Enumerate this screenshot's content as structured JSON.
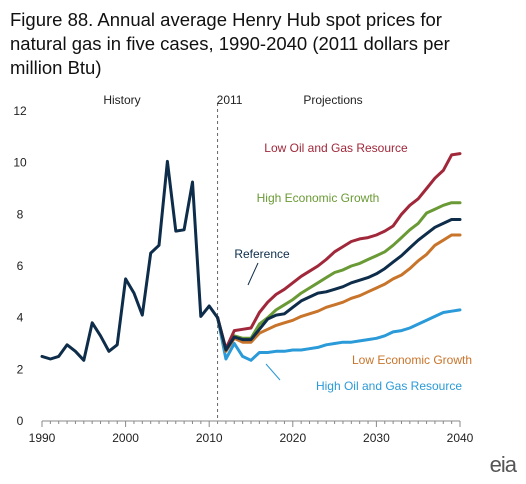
{
  "title": "Figure 88. Annual average Henry Hub spot prices for natural gas in five cases, 1990-2040 (2011 dollars per million Btu)",
  "logo": "eia",
  "chart_data": {
    "type": "line",
    "xlim": [
      1990,
      2040
    ],
    "ylim": [
      0,
      12
    ],
    "xticks": [
      1990,
      2000,
      2010,
      2020,
      2030,
      2040
    ],
    "yticks": [
      0,
      2,
      4,
      6,
      8,
      10,
      12
    ],
    "grid": false,
    "annotations": {
      "history": "History",
      "year_2011": "2011",
      "projections": "Projections"
    },
    "history": {
      "color": "#0e2d4a",
      "x": [
        1990,
        1991,
        1992,
        1993,
        1994,
        1995,
        1996,
        1997,
        1998,
        1999,
        2000,
        2001,
        2002,
        2003,
        2004,
        2005,
        2006,
        2007,
        2008,
        2009,
        2010,
        2011
      ],
      "y": [
        2.5,
        2.4,
        2.5,
        2.95,
        2.7,
        2.35,
        3.8,
        3.3,
        2.7,
        2.95,
        5.5,
        4.95,
        4.1,
        6.5,
        6.8,
        10.05,
        7.35,
        7.4,
        9.25,
        4.05,
        4.45,
        4.0
      ]
    },
    "series": [
      {
        "name": "Low Oil and Gas Resource",
        "color": "#a0283a",
        "x": [
          2011,
          2012,
          2013,
          2014,
          2015,
          2016,
          2017,
          2018,
          2019,
          2020,
          2021,
          2022,
          2023,
          2024,
          2025,
          2026,
          2027,
          2028,
          2029,
          2030,
          2031,
          2032,
          2033,
          2034,
          2035,
          2036,
          2037,
          2038,
          2039,
          2040
        ],
        "y": [
          4.0,
          2.8,
          3.5,
          3.55,
          3.6,
          4.2,
          4.6,
          4.9,
          5.1,
          5.35,
          5.6,
          5.8,
          6.0,
          6.25,
          6.55,
          6.75,
          6.95,
          7.05,
          7.1,
          7.2,
          7.35,
          7.55,
          8.0,
          8.35,
          8.6,
          9.0,
          9.4,
          9.7,
          10.3,
          10.35
        ]
      },
      {
        "name": "High Economic Growth",
        "color": "#6a9a35",
        "x": [
          2011,
          2012,
          2013,
          2014,
          2015,
          2016,
          2017,
          2018,
          2019,
          2020,
          2021,
          2022,
          2023,
          2024,
          2025,
          2026,
          2027,
          2028,
          2029,
          2030,
          2031,
          2032,
          2033,
          2034,
          2035,
          2036,
          2037,
          2038,
          2039,
          2040
        ],
        "y": [
          4.0,
          2.75,
          3.3,
          3.2,
          3.2,
          3.75,
          4.0,
          4.3,
          4.5,
          4.7,
          4.95,
          5.15,
          5.35,
          5.55,
          5.75,
          5.85,
          6.0,
          6.1,
          6.25,
          6.4,
          6.55,
          6.8,
          7.1,
          7.4,
          7.65,
          8.05,
          8.2,
          8.35,
          8.45,
          8.45
        ]
      },
      {
        "name": "Reference",
        "color": "#0e2d4a",
        "x": [
          2011,
          2012,
          2013,
          2014,
          2015,
          2016,
          2017,
          2018,
          2019,
          2020,
          2021,
          2022,
          2023,
          2024,
          2025,
          2026,
          2027,
          2028,
          2029,
          2030,
          2031,
          2032,
          2033,
          2034,
          2035,
          2036,
          2037,
          2038,
          2039,
          2040
        ],
        "y": [
          4.0,
          2.75,
          3.25,
          3.15,
          3.15,
          3.55,
          3.95,
          4.1,
          4.15,
          4.4,
          4.65,
          4.8,
          4.95,
          5.0,
          5.1,
          5.2,
          5.35,
          5.45,
          5.55,
          5.7,
          5.9,
          6.15,
          6.4,
          6.7,
          7.0,
          7.25,
          7.5,
          7.65,
          7.8,
          7.8
        ]
      },
      {
        "name": "Low Economic Growth",
        "color": "#c8742a",
        "x": [
          2011,
          2012,
          2013,
          2014,
          2015,
          2016,
          2017,
          2018,
          2019,
          2020,
          2021,
          2022,
          2023,
          2024,
          2025,
          2026,
          2027,
          2028,
          2029,
          2030,
          2031,
          2032,
          2033,
          2034,
          2035,
          2036,
          2037,
          2038,
          2039,
          2040
        ],
        "y": [
          4.0,
          2.7,
          3.2,
          3.05,
          3.05,
          3.4,
          3.55,
          3.7,
          3.8,
          3.9,
          4.05,
          4.15,
          4.25,
          4.4,
          4.5,
          4.6,
          4.75,
          4.85,
          5.0,
          5.15,
          5.3,
          5.5,
          5.65,
          5.9,
          6.2,
          6.45,
          6.8,
          7.0,
          7.2,
          7.2
        ]
      },
      {
        "name": "High Oil and Gas Resource",
        "color": "#2a9ad8",
        "x": [
          2011,
          2012,
          2013,
          2014,
          2015,
          2016,
          2017,
          2018,
          2019,
          2020,
          2021,
          2022,
          2023,
          2024,
          2025,
          2026,
          2027,
          2028,
          2029,
          2030,
          2031,
          2032,
          2033,
          2034,
          2035,
          2036,
          2037,
          2038,
          2039,
          2040
        ],
        "y": [
          4.0,
          2.4,
          3.0,
          2.5,
          2.35,
          2.65,
          2.65,
          2.7,
          2.7,
          2.75,
          2.75,
          2.8,
          2.85,
          2.95,
          3.0,
          3.05,
          3.05,
          3.1,
          3.15,
          3.2,
          3.3,
          3.45,
          3.5,
          3.6,
          3.75,
          3.9,
          4.05,
          4.2,
          4.25,
          4.3
        ]
      }
    ]
  }
}
